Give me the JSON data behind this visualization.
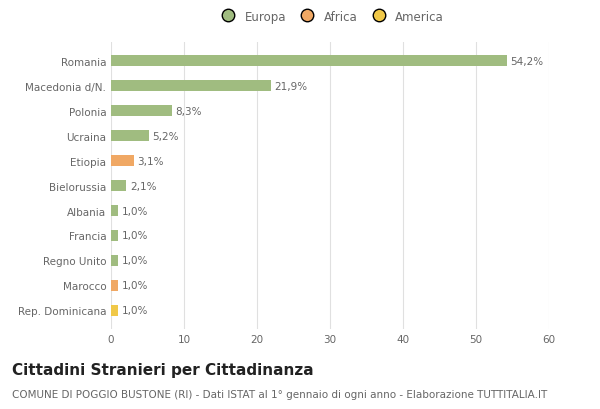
{
  "categories": [
    "Rep. Dominicana",
    "Marocco",
    "Regno Unito",
    "Francia",
    "Albania",
    "Bielorussia",
    "Etiopia",
    "Ucraina",
    "Polonia",
    "Macedonia d/N.",
    "Romania"
  ],
  "values": [
    1.0,
    1.0,
    1.0,
    1.0,
    1.0,
    2.1,
    3.1,
    5.2,
    8.3,
    21.9,
    54.2
  ],
  "labels": [
    "1,0%",
    "1,0%",
    "1,0%",
    "1,0%",
    "1,0%",
    "2,1%",
    "3,1%",
    "5,2%",
    "8,3%",
    "21,9%",
    "54,2%"
  ],
  "colors": [
    "#f0c848",
    "#f0a864",
    "#a0bc80",
    "#a0bc80",
    "#a0bc80",
    "#a0bc80",
    "#f0a864",
    "#a0bc80",
    "#a0bc80",
    "#a0bc80",
    "#a0bc80"
  ],
  "continent": [
    "America",
    "Africa",
    "Europa",
    "Europa",
    "Europa",
    "Europa",
    "Africa",
    "Europa",
    "Europa",
    "Europa",
    "Europa"
  ],
  "legend_labels": [
    "Europa",
    "Africa",
    "America"
  ],
  "legend_colors": [
    "#a0bc80",
    "#f0a864",
    "#f0c848"
  ],
  "title": "Cittadini Stranieri per Cittadinanza",
  "subtitle": "COMUNE DI POGGIO BUSTONE (RI) - Dati ISTAT al 1° gennaio di ogni anno - Elaborazione TUTTITALIA.IT",
  "xlim": [
    0,
    60
  ],
  "xticks": [
    0,
    10,
    20,
    30,
    40,
    50,
    60
  ],
  "background_color": "#ffffff",
  "grid_color": "#e0e0e0",
  "bar_height": 0.45,
  "title_fontsize": 11,
  "subtitle_fontsize": 7.5,
  "label_fontsize": 7.5,
  "tick_fontsize": 7.5,
  "legend_fontsize": 8.5,
  "text_color": "#666666",
  "title_color": "#222222"
}
